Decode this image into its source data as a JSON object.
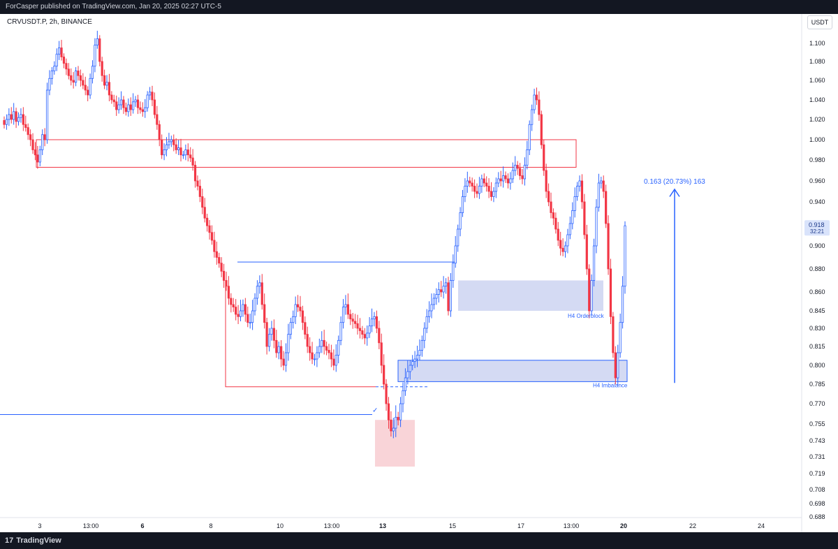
{
  "header": {
    "published": "ForCasper published on TradingView.com, Jan 20, 2025 02:27 UTC-5"
  },
  "symbol": "CRVUSDT.P, 2h, BINANCE",
  "currency": "USDT",
  "footer": {
    "logo_mark": "17",
    "logo_text": "TradingView"
  },
  "colors": {
    "up": "#2962ff",
    "down": "#f23645",
    "zone_fill": "#c5cdef",
    "supply": "#f23645"
  },
  "chart_data": {
    "type": "candlestick",
    "y_ticks": [
      "1.100",
      "1.080",
      "1.060",
      "1.040",
      "1.020",
      "1.000",
      "0.980",
      "0.960",
      "0.940",
      "0.920",
      "0.900",
      "0.880",
      "0.860",
      "0.845",
      "0.830",
      "0.815",
      "0.800",
      "0.785",
      "0.770",
      "0.755",
      "0.743",
      "0.731",
      "0.719",
      "0.708",
      "0.698",
      "0.688"
    ],
    "x_ticks": [
      {
        "label": "3",
        "bold": false
      },
      {
        "label": "13:00",
        "bold": false
      },
      {
        "label": "6",
        "bold": true
      },
      {
        "label": "8",
        "bold": false
      },
      {
        "label": "10",
        "bold": false
      },
      {
        "label": "13:00",
        "bold": false
      },
      {
        "label": "13",
        "bold": true
      },
      {
        "label": "15",
        "bold": false
      },
      {
        "label": "17",
        "bold": false
      },
      {
        "label": "13:00",
        "bold": false
      },
      {
        "label": "20",
        "bold": true
      },
      {
        "label": "22",
        "bold": false
      },
      {
        "label": "24",
        "bold": false
      }
    ],
    "last_price": "0.918",
    "countdown": "32:21",
    "annotations": {
      "measure": "0.163 (20.73%) 163",
      "orderblock": "H4 Orderblock",
      "imbalance": "H4 Imbalance",
      "check": "✓"
    },
    "prices": [
      1.015,
      1.02,
      1.025,
      1.02,
      1.028,
      1.018,
      1.022,
      1.025,
      1.015,
      1.012,
      1.005,
      1.0,
      0.99,
      0.985,
      0.978,
      0.99,
      1.005,
      1.0,
      1.05,
      1.062,
      1.07,
      1.075,
      1.088,
      1.095,
      1.085,
      1.078,
      1.072,
      1.065,
      1.06,
      1.058,
      1.07,
      1.065,
      1.06,
      1.055,
      1.05,
      1.045,
      1.062,
      1.075,
      1.098,
      1.105,
      1.08,
      1.065,
      1.055,
      1.058,
      1.045,
      1.04,
      1.038,
      1.03,
      1.035,
      1.04,
      1.032,
      1.028,
      1.035,
      1.03,
      1.038,
      1.04,
      1.032,
      1.03,
      1.028,
      1.032,
      1.045,
      1.048,
      1.04,
      1.025,
      1.015,
      1.0,
      0.985,
      0.99,
      0.995,
      0.998,
      1.0,
      0.995,
      0.99,
      0.992,
      0.985,
      0.985,
      0.99,
      0.985,
      0.982,
      0.975,
      0.96,
      0.955,
      0.945,
      0.935,
      0.925,
      0.918,
      0.912,
      0.905,
      0.895,
      0.89,
      0.885,
      0.878,
      0.87,
      0.865,
      0.855,
      0.85,
      0.848,
      0.842,
      0.84,
      0.845,
      0.85,
      0.842,
      0.835,
      0.835,
      0.845,
      0.855,
      0.865,
      0.868,
      0.85,
      0.835,
      0.815,
      0.825,
      0.83,
      0.82,
      0.81,
      0.815,
      0.805,
      0.8,
      0.81,
      0.825,
      0.835,
      0.84,
      0.85,
      0.848,
      0.845,
      0.835,
      0.825,
      0.815,
      0.81,
      0.805,
      0.805,
      0.81,
      0.815,
      0.82,
      0.815,
      0.812,
      0.81,
      0.805,
      0.8,
      0.808,
      0.82,
      0.835,
      0.848,
      0.85,
      0.842,
      0.838,
      0.836,
      0.834,
      0.83,
      0.828,
      0.825,
      0.822,
      0.826,
      0.832,
      0.838,
      0.84,
      0.83,
      0.818,
      0.8,
      0.785,
      0.77,
      0.758,
      0.75,
      0.752,
      0.76,
      0.758,
      0.77,
      0.78,
      0.79,
      0.795,
      0.8,
      0.803,
      0.805,
      0.808,
      0.812,
      0.82,
      0.83,
      0.84,
      0.845,
      0.85,
      0.855,
      0.858,
      0.862,
      0.86,
      0.865,
      0.868,
      0.845,
      0.87,
      0.885,
      0.9,
      0.915,
      0.93,
      0.945,
      0.955,
      0.96,
      0.958,
      0.955,
      0.95,
      0.948,
      0.955,
      0.962,
      0.958,
      0.955,
      0.95,
      0.945,
      0.95,
      0.958,
      0.962,
      0.96,
      0.965,
      0.962,
      0.958,
      0.962,
      0.97,
      0.975,
      0.972,
      0.965,
      0.962,
      0.975,
      0.99,
      1.015,
      1.03,
      1.045,
      1.04,
      1.025,
      0.995,
      0.97,
      0.95,
      0.94,
      0.93,
      0.925,
      0.915,
      0.905,
      0.898,
      0.895,
      0.9,
      0.91,
      0.92,
      0.932,
      0.945,
      0.955,
      0.96,
      0.94,
      0.91,
      0.88,
      0.845,
      0.87,
      0.9,
      0.935,
      0.958,
      0.96,
      0.95,
      0.92,
      0.88,
      0.84,
      0.81,
      0.79,
      0.81,
      0.835,
      0.865,
      0.918
    ]
  }
}
